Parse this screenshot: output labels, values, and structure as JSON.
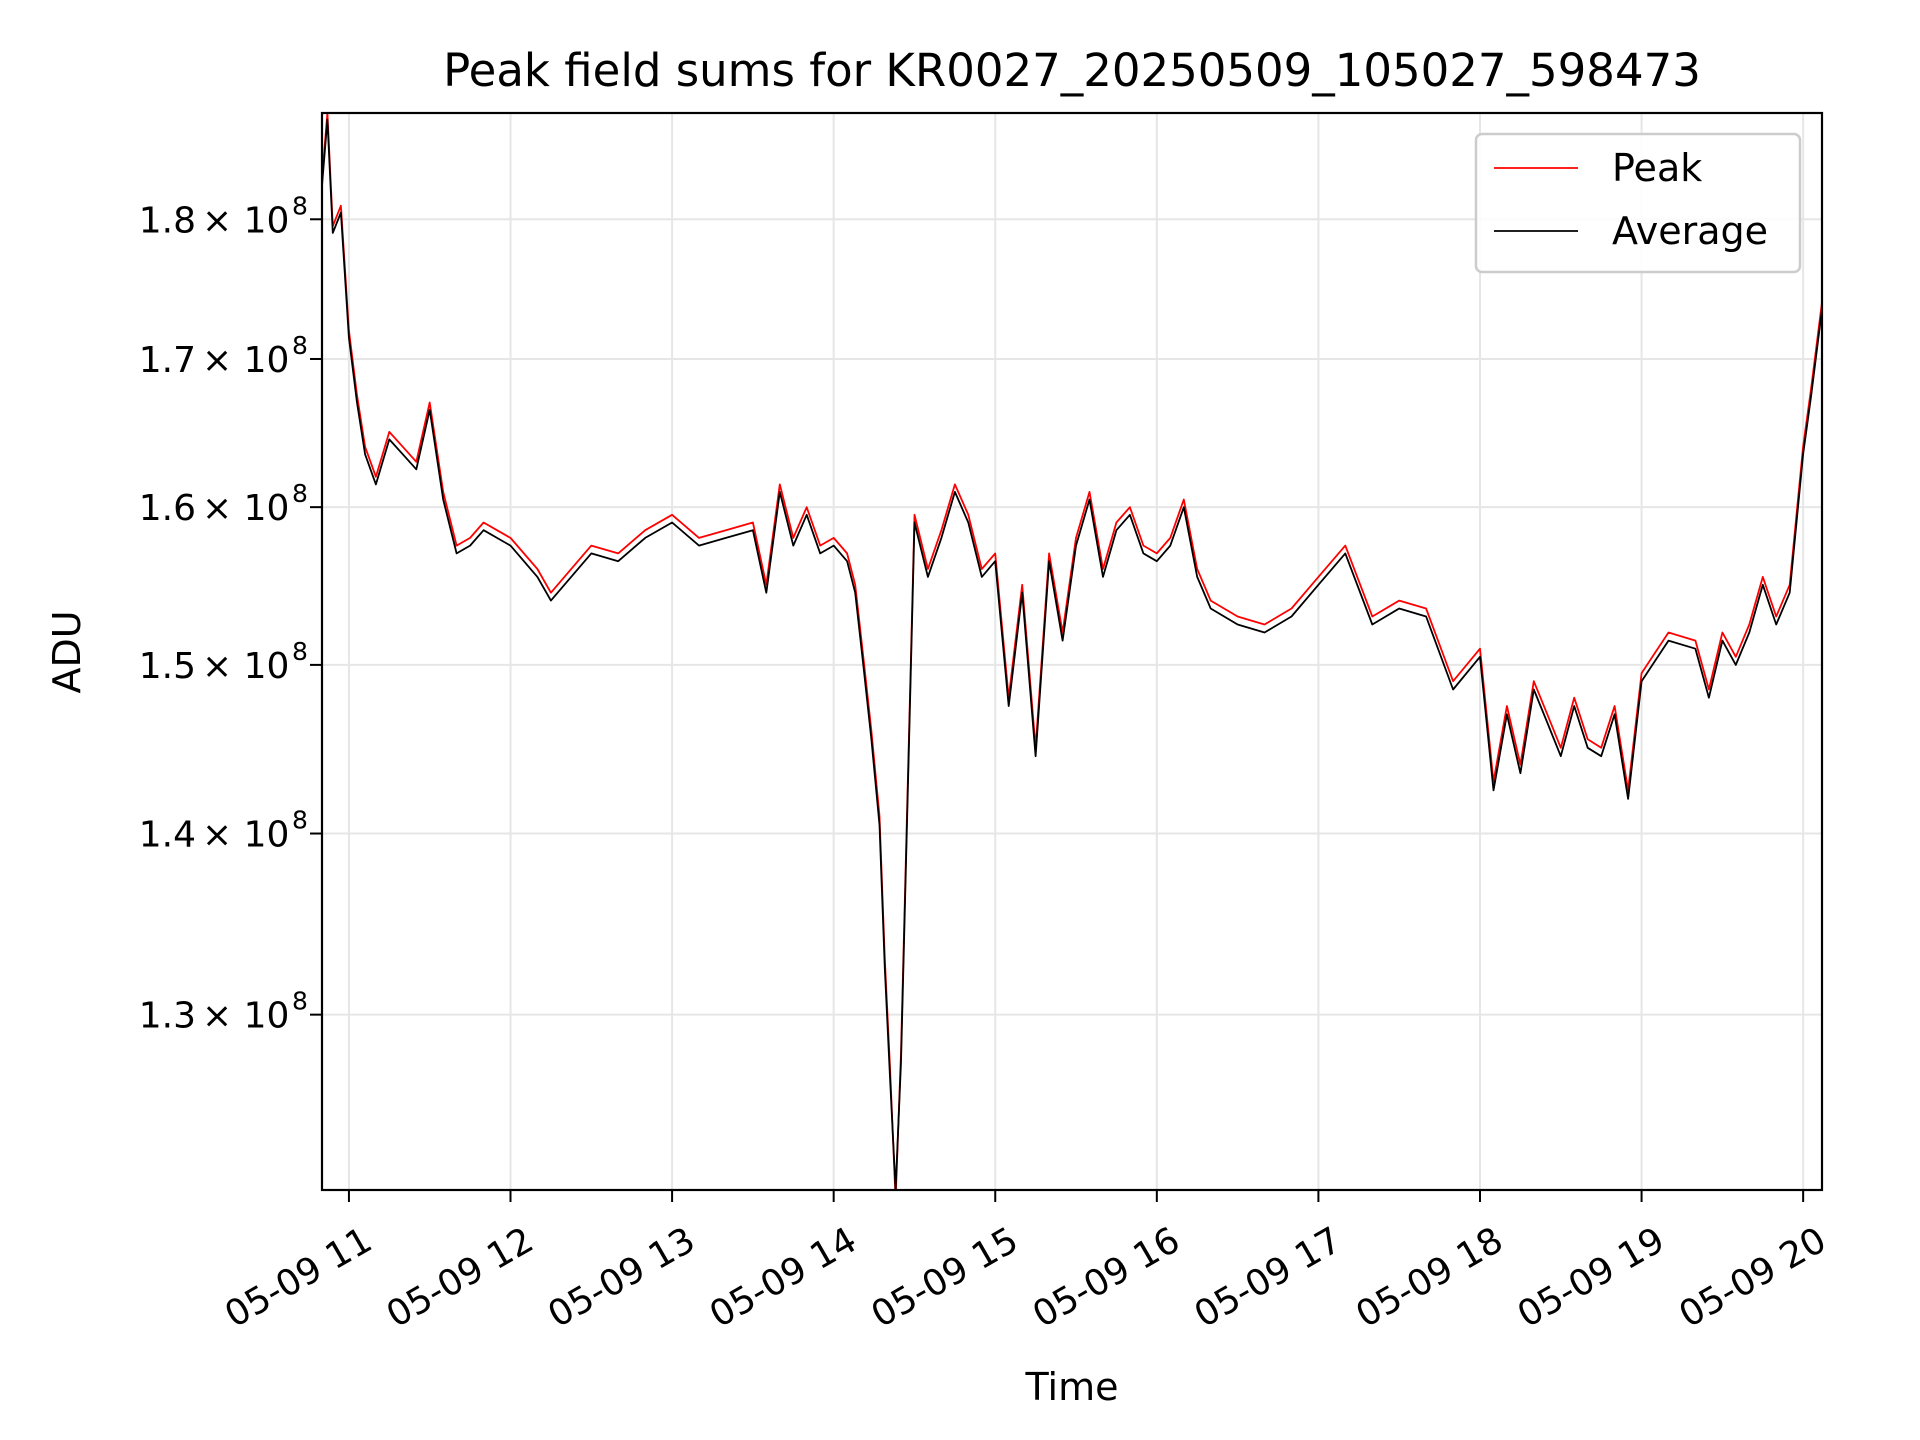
{
  "chart_data": {
    "type": "line",
    "title": "Peak field sums for KR0027_20250509_105027_598473",
    "xlabel": "Time",
    "ylabel": "ADU",
    "x_range": [
      "2025-05-09 10:50",
      "2025-05-09 20:07"
    ],
    "ylim": [
      121000000,
      188000000
    ],
    "y_scale": "log",
    "grid": true,
    "legend_position": "top-right",
    "x_ticks": [
      {
        "label": "05-09 11",
        "value": "2025-05-09 11:00"
      },
      {
        "label": "05-09 12",
        "value": "2025-05-09 12:00"
      },
      {
        "label": "05-09 13",
        "value": "2025-05-09 13:00"
      },
      {
        "label": "05-09 14",
        "value": "2025-05-09 14:00"
      },
      {
        "label": "05-09 15",
        "value": "2025-05-09 15:00"
      },
      {
        "label": "05-09 16",
        "value": "2025-05-09 16:00"
      },
      {
        "label": "05-09 17",
        "value": "2025-05-09 17:00"
      },
      {
        "label": "05-09 18",
        "value": "2025-05-09 18:00"
      },
      {
        "label": "05-09 19",
        "value": "2025-05-09 19:00"
      },
      {
        "label": "05-09 20",
        "value": "2025-05-09 20:00"
      }
    ],
    "y_ticks": [
      {
        "mantissa": "1.3",
        "exponent": "8",
        "value": 130000000
      },
      {
        "mantissa": "1.4",
        "exponent": "8",
        "value": 140000000
      },
      {
        "mantissa": "1.5",
        "exponent": "8",
        "value": 150000000
      },
      {
        "mantissa": "1.6",
        "exponent": "8",
        "value": 160000000
      },
      {
        "mantissa": "1.7",
        "exponent": "8",
        "value": 170000000
      },
      {
        "mantissa": "1.8",
        "exponent": "8",
        "value": 180000000
      }
    ],
    "y_tick_multiplier": "× 10",
    "series": [
      {
        "name": "Peak",
        "color": "#ff0000",
        "x": [
          "2025-05-09 10:50",
          "2025-05-09 10:52",
          "2025-05-09 10:54",
          "2025-05-09 10:57",
          "2025-05-09 11:00",
          "2025-05-09 11:03",
          "2025-05-09 11:06",
          "2025-05-09 11:10",
          "2025-05-09 11:15",
          "2025-05-09 11:20",
          "2025-05-09 11:25",
          "2025-05-09 11:30",
          "2025-05-09 11:35",
          "2025-05-09 11:40",
          "2025-05-09 11:45",
          "2025-05-09 11:50",
          "2025-05-09 11:55",
          "2025-05-09 12:00",
          "2025-05-09 12:10",
          "2025-05-09 12:15",
          "2025-05-09 12:20",
          "2025-05-09 12:30",
          "2025-05-09 12:40",
          "2025-05-09 12:50",
          "2025-05-09 13:00",
          "2025-05-09 13:10",
          "2025-05-09 13:20",
          "2025-05-09 13:30",
          "2025-05-09 13:35",
          "2025-05-09 13:40",
          "2025-05-09 13:45",
          "2025-05-09 13:50",
          "2025-05-09 13:55",
          "2025-05-09 14:00",
          "2025-05-09 14:05",
          "2025-05-09 14:08",
          "2025-05-09 14:11",
          "2025-05-09 14:14",
          "2025-05-09 14:17",
          "2025-05-09 14:19",
          "2025-05-09 14:21",
          "2025-05-09 14:23",
          "2025-05-09 14:25",
          "2025-05-09 14:28",
          "2025-05-09 14:30",
          "2025-05-09 14:35",
          "2025-05-09 14:40",
          "2025-05-09 14:45",
          "2025-05-09 14:50",
          "2025-05-09 14:55",
          "2025-05-09 15:00",
          "2025-05-09 15:05",
          "2025-05-09 15:10",
          "2025-05-09 15:15",
          "2025-05-09 15:20",
          "2025-05-09 15:25",
          "2025-05-09 15:30",
          "2025-05-09 15:35",
          "2025-05-09 15:40",
          "2025-05-09 15:45",
          "2025-05-09 15:50",
          "2025-05-09 15:55",
          "2025-05-09 16:00",
          "2025-05-09 16:05",
          "2025-05-09 16:10",
          "2025-05-09 16:15",
          "2025-05-09 16:20",
          "2025-05-09 16:30",
          "2025-05-09 16:40",
          "2025-05-09 16:50",
          "2025-05-09 17:00",
          "2025-05-09 17:10",
          "2025-05-09 17:20",
          "2025-05-09 17:30",
          "2025-05-09 17:40",
          "2025-05-09 17:50",
          "2025-05-09 18:00",
          "2025-05-09 18:05",
          "2025-05-09 18:10",
          "2025-05-09 18:15",
          "2025-05-09 18:20",
          "2025-05-09 18:25",
          "2025-05-09 18:30",
          "2025-05-09 18:35",
          "2025-05-09 18:40",
          "2025-05-09 18:45",
          "2025-05-09 18:50",
          "2025-05-09 18:55",
          "2025-05-09 19:00",
          "2025-05-09 19:10",
          "2025-05-09 19:20",
          "2025-05-09 19:25",
          "2025-05-09 19:30",
          "2025-05-09 19:35",
          "2025-05-09 19:40",
          "2025-05-09 19:45",
          "2025-05-09 19:50",
          "2025-05-09 19:55",
          "2025-05-09 20:00",
          "2025-05-09 20:03",
          "2025-05-09 20:07"
        ],
        "values": [
          183000000,
          188000000,
          179500000,
          181000000,
          172000000,
          167500000,
          164000000,
          162000000,
          165000000,
          164000000,
          163000000,
          167000000,
          161000000,
          157500000,
          158000000,
          159000000,
          158500000,
          158000000,
          156000000,
          154500000,
          155500000,
          157500000,
          157000000,
          158500000,
          159500000,
          158000000,
          158500000,
          159000000,
          155000000,
          161500000,
          158000000,
          160000000,
          157500000,
          158000000,
          157000000,
          155000000,
          150500000,
          146000000,
          141000000,
          133000000,
          127000000,
          120500000,
          128000000,
          146000000,
          159500000,
          156000000,
          158500000,
          161500000,
          159500000,
          156000000,
          157000000,
          148000000,
          155000000,
          145000000,
          157000000,
          152000000,
          158000000,
          161000000,
          156000000,
          159000000,
          160000000,
          157500000,
          157000000,
          158000000,
          160500000,
          156000000,
          154000000,
          153000000,
          152500000,
          153500000,
          155500000,
          157500000,
          153000000,
          154000000,
          153500000,
          149000000,
          151000000,
          143000000,
          147500000,
          144000000,
          149000000,
          147000000,
          145000000,
          148000000,
          145500000,
          145000000,
          147500000,
          142500000,
          149500000,
          152000000,
          151500000,
          148500000,
          152000000,
          150500000,
          152500000,
          155500000,
          153000000,
          155000000,
          164000000,
          168000000,
          174000000
        ]
      },
      {
        "name": "Average",
        "color": "#000000",
        "x": [
          "2025-05-09 10:50",
          "2025-05-09 10:52",
          "2025-05-09 10:54",
          "2025-05-09 10:57",
          "2025-05-09 11:00",
          "2025-05-09 11:03",
          "2025-05-09 11:06",
          "2025-05-09 11:10",
          "2025-05-09 11:15",
          "2025-05-09 11:20",
          "2025-05-09 11:25",
          "2025-05-09 11:30",
          "2025-05-09 11:35",
          "2025-05-09 11:40",
          "2025-05-09 11:45",
          "2025-05-09 11:50",
          "2025-05-09 11:55",
          "2025-05-09 12:00",
          "2025-05-09 12:10",
          "2025-05-09 12:15",
          "2025-05-09 12:20",
          "2025-05-09 12:30",
          "2025-05-09 12:40",
          "2025-05-09 12:50",
          "2025-05-09 13:00",
          "2025-05-09 13:10",
          "2025-05-09 13:20",
          "2025-05-09 13:30",
          "2025-05-09 13:35",
          "2025-05-09 13:40",
          "2025-05-09 13:45",
          "2025-05-09 13:50",
          "2025-05-09 13:55",
          "2025-05-09 14:00",
          "2025-05-09 14:05",
          "2025-05-09 14:08",
          "2025-05-09 14:11",
          "2025-05-09 14:14",
          "2025-05-09 14:17",
          "2025-05-09 14:19",
          "2025-05-09 14:21",
          "2025-05-09 14:23",
          "2025-05-09 14:25",
          "2025-05-09 14:28",
          "2025-05-09 14:30",
          "2025-05-09 14:35",
          "2025-05-09 14:40",
          "2025-05-09 14:45",
          "2025-05-09 14:50",
          "2025-05-09 14:55",
          "2025-05-09 15:00",
          "2025-05-09 15:05",
          "2025-05-09 15:10",
          "2025-05-09 15:15",
          "2025-05-09 15:20",
          "2025-05-09 15:25",
          "2025-05-09 15:30",
          "2025-05-09 15:35",
          "2025-05-09 15:40",
          "2025-05-09 15:45",
          "2025-05-09 15:50",
          "2025-05-09 15:55",
          "2025-05-09 16:00",
          "2025-05-09 16:05",
          "2025-05-09 16:10",
          "2025-05-09 16:15",
          "2025-05-09 16:20",
          "2025-05-09 16:30",
          "2025-05-09 16:40",
          "2025-05-09 16:50",
          "2025-05-09 17:00",
          "2025-05-09 17:10",
          "2025-05-09 17:20",
          "2025-05-09 17:30",
          "2025-05-09 17:40",
          "2025-05-09 17:50",
          "2025-05-09 18:00",
          "2025-05-09 18:05",
          "2025-05-09 18:10",
          "2025-05-09 18:15",
          "2025-05-09 18:20",
          "2025-05-09 18:25",
          "2025-05-09 18:30",
          "2025-05-09 18:35",
          "2025-05-09 18:40",
          "2025-05-09 18:45",
          "2025-05-09 18:50",
          "2025-05-09 18:55",
          "2025-05-09 19:00",
          "2025-05-09 19:10",
          "2025-05-09 19:20",
          "2025-05-09 19:25",
          "2025-05-09 19:30",
          "2025-05-09 19:35",
          "2025-05-09 19:40",
          "2025-05-09 19:45",
          "2025-05-09 19:50",
          "2025-05-09 19:55",
          "2025-05-09 20:00",
          "2025-05-09 20:03",
          "2025-05-09 20:07"
        ],
        "values": [
          182500000,
          187500000,
          179000000,
          180500000,
          171500000,
          167000000,
          163500000,
          161500000,
          164500000,
          163500000,
          162500000,
          166500000,
          160500000,
          157000000,
          157500000,
          158500000,
          158000000,
          157500000,
          155500000,
          154000000,
          155000000,
          157000000,
          156500000,
          158000000,
          159000000,
          157500000,
          158000000,
          158500000,
          154500000,
          161000000,
          157500000,
          159500000,
          157000000,
          157500000,
          156500000,
          154500000,
          150000000,
          145500000,
          140500000,
          132500000,
          126500000,
          121000000,
          127500000,
          145500000,
          159000000,
          155500000,
          158000000,
          161000000,
          159000000,
          155500000,
          156500000,
          147500000,
          154500000,
          144500000,
          156500000,
          151500000,
          157500000,
          160500000,
          155500000,
          158500000,
          159500000,
          157000000,
          156500000,
          157500000,
          160000000,
          155500000,
          153500000,
          152500000,
          152000000,
          153000000,
          155000000,
          157000000,
          152500000,
          153500000,
          153000000,
          148500000,
          150500000,
          142500000,
          147000000,
          143500000,
          148500000,
          146500000,
          144500000,
          147500000,
          145000000,
          144500000,
          147000000,
          142000000,
          149000000,
          151500000,
          151000000,
          148000000,
          151500000,
          150000000,
          152000000,
          155000000,
          152500000,
          154500000,
          163500000,
          167500000,
          173500000
        ]
      }
    ]
  }
}
